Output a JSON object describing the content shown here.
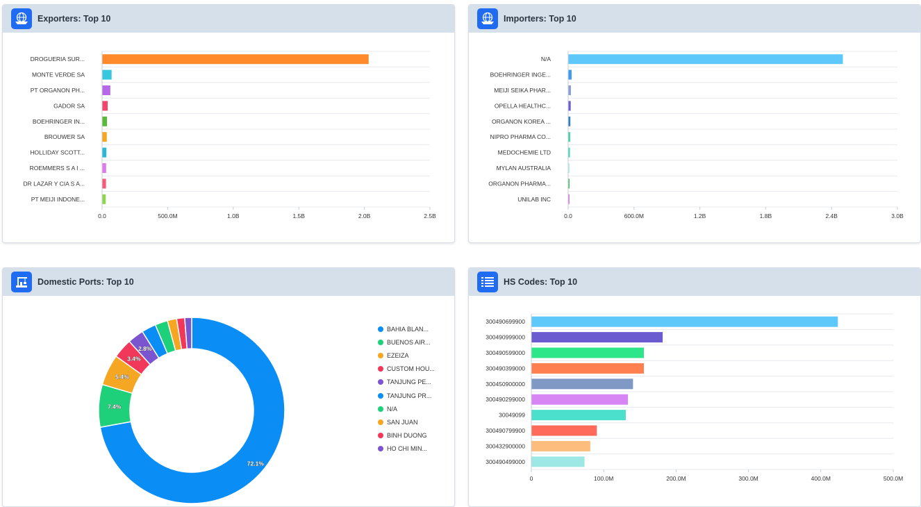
{
  "exporters": {
    "title": "Exporters: Top 10",
    "icon": "globe-ship-icon",
    "chart_data": {
      "type": "bar",
      "orientation": "horizontal",
      "categories": [
        "DROGUERIA SUR...",
        "MONTE VERDE SA",
        "PT ORGANON PH...",
        "GADOR SA",
        "BOEHRINGER IN...",
        "BROUWER SA",
        "HOLLIDAY SCOTT...",
        "ROEMMERS S A I ...",
        "DR LAZAR Y CIA S A...",
        "PT MEIJI INDONE..."
      ],
      "values": [
        2030000000,
        70000000,
        60000000,
        40000000,
        35000000,
        33000000,
        30000000,
        28000000,
        27000000,
        25000000
      ],
      "colors": [
        "#ff8a2b",
        "#37c8e0",
        "#b569e8",
        "#f2476a",
        "#5ab83d",
        "#f5a623",
        "#2ab7d8",
        "#e07aef",
        "#f75a7a",
        "#8fd64b"
      ],
      "xlim": [
        0,
        2500000000
      ],
      "ticks": [
        0,
        500000000,
        1000000000,
        1500000000,
        2000000000,
        2500000000
      ],
      "tick_labels": [
        "0.0",
        "500.0M",
        "1.0B",
        "1.5B",
        "2.0B",
        "2.5B"
      ]
    }
  },
  "importers": {
    "title": "Importers: Top 10",
    "icon": "globe-ship-icon",
    "chart_data": {
      "type": "bar",
      "orientation": "horizontal",
      "categories": [
        "N/A",
        "BOEHRINGER INGE...",
        "MEIJI SEIKA PHAR...",
        "OPELLA HEALTHC...",
        "ORGANON KOREA ...",
        "NIPRO PHARMA CO...",
        "MEDOCHEMIE LTD",
        "MYLAN AUSTRALIA",
        "ORGANON PHARMA...",
        "UNILAB INC"
      ],
      "values": [
        2500000000,
        28000000,
        22000000,
        20000000,
        17000000,
        15000000,
        13000000,
        11000000,
        10000000,
        9000000
      ],
      "colors": [
        "#5ec8fa",
        "#3b9cf0",
        "#8a9fd0",
        "#6a5bd0",
        "#2f7fc1",
        "#35d6a3",
        "#3fd9c0",
        "#b7eef0",
        "#4fbf6a",
        "#d77ce8"
      ],
      "xlim": [
        0,
        3000000000
      ],
      "ticks": [
        0,
        600000000,
        1200000000,
        1800000000,
        2400000000,
        3000000000
      ],
      "tick_labels": [
        "0.0",
        "600.0M",
        "1.2B",
        "1.8B",
        "2.4B",
        "3.0B"
      ]
    }
  },
  "ports": {
    "title": "Domestic Ports: Top 10",
    "icon": "port-crane-icon",
    "chart_data": {
      "type": "pie",
      "variant": "donut",
      "labels": [
        "BAHIA BLAN...",
        "BUENOS AIR...",
        "EZEIZA",
        "CUSTOM HOU...",
        "TANJUNG PE...",
        "TANJUNG PR...",
        "N/A",
        "SAN JUAN",
        "BINH DUONG",
        "HO CHI MIN..."
      ],
      "values": [
        72.1,
        7.4,
        5.4,
        3.4,
        2.8,
        2.5,
        2.2,
        1.6,
        1.4,
        1.2
      ],
      "data_labels": [
        "72.1%",
        "7.4%",
        "5.4%",
        "3.4%",
        "2.8%",
        "",
        "",
        "",
        "",
        ""
      ],
      "colors": [
        "#0a8ef5",
        "#1fd07a",
        "#f5a623",
        "#f2385a",
        "#7b55cf",
        "#0a8ef5",
        "#1fd07a",
        "#f5a623",
        "#f2385a",
        "#7b55cf"
      ]
    }
  },
  "hs_codes": {
    "title": "HS Codes: Top 10",
    "icon": "list-icon",
    "chart_data": {
      "type": "bar",
      "orientation": "horizontal",
      "categories": [
        "300490699900",
        "300490999000",
        "300490599000",
        "300490399000",
        "300450900000",
        "300490299000",
        "30049099",
        "300490799900",
        "300432900000",
        "300490499000"
      ],
      "values": [
        423000000,
        181000000,
        155000000,
        155000000,
        140000000,
        133000000,
        130000000,
        90000000,
        81000000,
        73000000
      ],
      "colors": [
        "#5ec8fa",
        "#6a5bd0",
        "#2ee68a",
        "#ff7f50",
        "#8099c4",
        "#d784f5",
        "#4be0cc",
        "#ff6a5a",
        "#fdbd7c",
        "#9de8e4"
      ],
      "xlim": [
        0,
        500000000
      ],
      "ticks": [
        0,
        100000000,
        200000000,
        300000000,
        400000000,
        500000000
      ],
      "tick_labels": [
        "0",
        "100.0M",
        "200.0M",
        "300.0M",
        "400.0M",
        "500.0M"
      ]
    }
  }
}
